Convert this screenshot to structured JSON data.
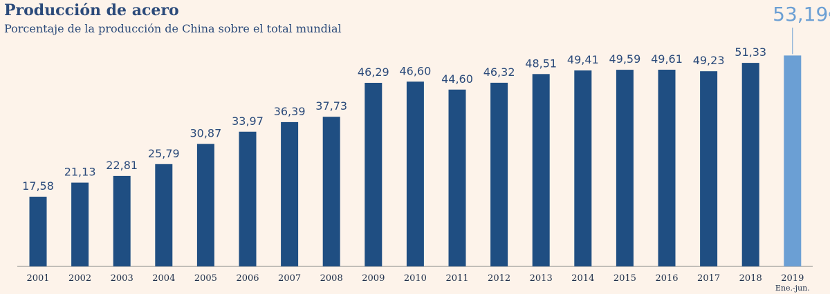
{
  "chart_data": {
    "type": "bar",
    "title": "Producción de acero",
    "subtitle": "Porcentaje de la producción de China sobre el total mundial",
    "categories": [
      "2001",
      "2002",
      "2003",
      "2004",
      "2005",
      "2006",
      "2007",
      "2008",
      "2009",
      "2010",
      "2011",
      "2012",
      "2013",
      "2014",
      "2015",
      "2016",
      "2017",
      "2018",
      "2019"
    ],
    "category_notes": {
      "2019": "Ene.-jun."
    },
    "values": [
      17.58,
      21.13,
      22.81,
      25.79,
      30.87,
      33.97,
      36.39,
      37.73,
      46.29,
      46.6,
      44.6,
      46.32,
      48.51,
      49.41,
      49.59,
      49.61,
      49.23,
      51.33,
      53.19
    ],
    "value_labels": [
      "17,58",
      "21,13",
      "22,81",
      "25,79",
      "30,87",
      "33,97",
      "36,39",
      "37,73",
      "46,29",
      "46,60",
      "44,60",
      "46,32",
      "48,51",
      "49,41",
      "49,59",
      "49,61",
      "49,23",
      "51,33",
      "53,19"
    ],
    "highlight_label": "53,19",
    "highlight_unit": "%",
    "ylim": [
      0,
      55
    ],
    "grid": false,
    "colors": {
      "bar": "#1f4e82",
      "highlight": "#6b9fd4",
      "text": "#2b4a7a",
      "background": "#fdf3ea"
    }
  }
}
